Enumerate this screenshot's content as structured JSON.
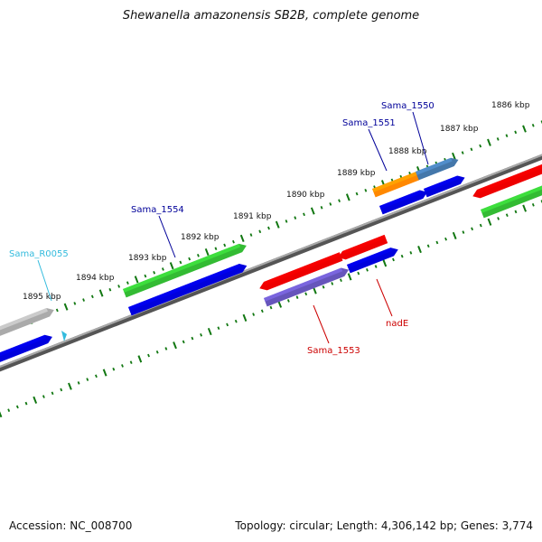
{
  "title": "Shewanella amazonensis SB2B, complete genome",
  "footer": {
    "accession": "Accession: NC_008700",
    "summary": "Topology: circular; Length: 4,306,142 bp; Genes: 3,774"
  },
  "ticks": [
    {
      "label": "1886 kbp"
    },
    {
      "label": "1887 kbp"
    },
    {
      "label": "1888 kbp"
    },
    {
      "label": "1889 kbp"
    },
    {
      "label": "1890 kbp"
    },
    {
      "label": "1891 kbp"
    },
    {
      "label": "1892 kbp"
    },
    {
      "label": "1893 kbp"
    },
    {
      "label": "1894 kbp"
    },
    {
      "label": "1895 kbp"
    }
  ],
  "genes": [
    {
      "name": "Sama_1550",
      "color": "#000099"
    },
    {
      "name": "Sama_1551",
      "color": "#000099"
    },
    {
      "name": "Sama_1554",
      "color": "#000099"
    },
    {
      "name": "Sama_R0055",
      "color": "#33bbdd"
    },
    {
      "name": "Sama_1553",
      "color": "#cc0000"
    },
    {
      "name": "nadE",
      "color": "#cc0000"
    }
  ],
  "colors": {
    "red": "#ee0000",
    "blue": "#0000dd",
    "green": "#33bb33",
    "orange": "#ff8800",
    "steelblue": "#4477aa",
    "purple": "#6655bb",
    "gray": "#aaaaaa",
    "tick": "#117711",
    "backbone": "#777777"
  }
}
